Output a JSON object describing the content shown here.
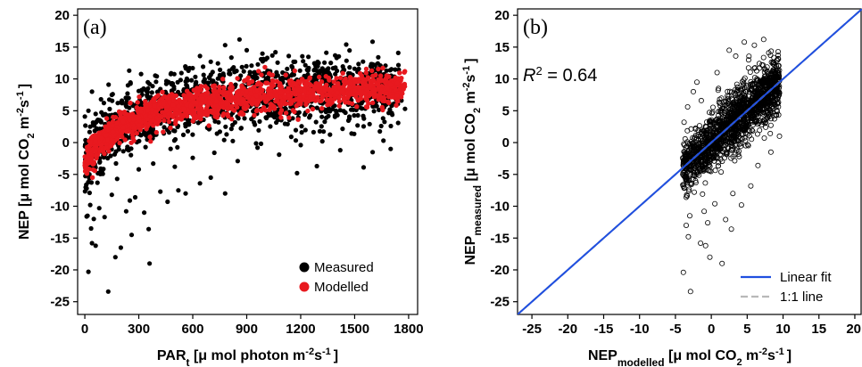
{
  "chart_data": [
    {
      "type": "scatter",
      "panel_label": "(a)",
      "xlabel": {
        "main": "PAR",
        "sub": "t",
        "rest": " [μ mol photon m",
        "sup1": "-2",
        "mid": "s",
        "sup2": "-1",
        "end": "]"
      },
      "ylabel": {
        "main": "NEP [μ mol CO",
        "sub": "2",
        "rest": " m",
        "sup1": "-2",
        "mid": "s",
        "sup2": "-1",
        "end": "]"
      },
      "xlim": [
        -40,
        1850
      ],
      "ylim": [
        -27,
        21
      ],
      "xticks": [
        0,
        300,
        600,
        900,
        1200,
        1500,
        1800
      ],
      "yticks": [
        -25,
        -20,
        -15,
        -10,
        -5,
        0,
        5,
        10,
        15,
        20
      ],
      "legend": {
        "position": "bottom-right",
        "entries": [
          {
            "label": "Measured",
            "color": "#000000"
          },
          {
            "label": "Modelled",
            "color": "#e8191f"
          }
        ]
      },
      "model": {
        "Pmax": 13.5,
        "alpha": 0.045,
        "Rd": 3.0
      },
      "series": [
        {
          "name": "Measured",
          "color": "#000000",
          "points": [
            [
              20,
              -20.3
            ],
            [
              40,
              -15.8
            ],
            [
              60,
              -16.2
            ],
            [
              130,
              -23.4
            ],
            [
              170,
              -18.0
            ],
            [
              260,
              -14.5
            ],
            [
              360,
              -19.0
            ],
            [
              355,
              -13.6
            ],
            [
              230,
              -10.8
            ],
            [
              200,
              -16.5
            ],
            [
              50,
              -12.0
            ],
            [
              80,
              -10.3
            ],
            [
              30,
              -9.8
            ],
            [
              110,
              -11.7
            ],
            [
              330,
              -11.0
            ],
            [
              150,
              -8.2
            ],
            [
              250,
              -9.1
            ],
            [
              280,
              -8.6
            ],
            [
              420,
              -7.7
            ],
            [
              460,
              -9.3
            ],
            [
              520,
              -7.5
            ],
            [
              560,
              -8.0
            ],
            [
              640,
              -6.4
            ],
            [
              700,
              -5.5
            ],
            [
              780,
              -8.0
            ],
            [
              1180,
              -4.8
            ],
            [
              1290,
              -3.7
            ],
            [
              1550,
              -3.9
            ],
            [
              1600,
              -1.5
            ],
            [
              1700,
              -1.0
            ],
            [
              860,
              16.2
            ],
            [
              900,
              14.5
            ],
            [
              780,
              15.3
            ],
            [
              1060,
              14.2
            ],
            [
              1400,
              13.3
            ],
            [
              1300,
              12.5
            ],
            [
              1600,
              12.3
            ],
            [
              640,
              13.6
            ],
            [
              700,
              12.7
            ],
            [
              560,
              11.9
            ],
            [
              480,
              10.9
            ],
            [
              400,
              10.4
            ],
            [
              980,
              13.1
            ],
            [
              1150,
              12.0
            ],
            [
              1500,
              11.6
            ],
            [
              1650,
              10.3
            ],
            [
              1700,
              8.9
            ],
            [
              1760,
              6.6
            ],
            [
              1780,
              5.3
            ],
            [
              40,
              8.0
            ],
            [
              20,
              5.0
            ],
            [
              60,
              4.5
            ],
            [
              30,
              2.5
            ],
            [
              90,
              6.8
            ],
            [
              150,
              7.5
            ],
            [
              200,
              6.3
            ],
            [
              240,
              9.0
            ],
            [
              300,
              8.1
            ],
            [
              360,
              9.2
            ],
            [
              420,
              8.4
            ],
            [
              820,
              11.6
            ],
            [
              940,
              11.0
            ],
            [
              1020,
              10.3
            ],
            [
              1100,
              9.9
            ],
            [
              1240,
              10.7
            ],
            [
              1340,
              9.4
            ],
            [
              1450,
              10.1
            ],
            [
              1560,
              8.8
            ],
            [
              750,
              10.2
            ],
            [
              660,
              9.6
            ],
            [
              10,
              -7.2
            ],
            [
              25,
              -5.6
            ],
            [
              45,
              -3.1
            ],
            [
              70,
              -6.3
            ],
            [
              15,
              -11.5
            ],
            [
              35,
              -13.5
            ],
            [
              100,
              -4.9
            ],
            [
              180,
              -5.7
            ],
            [
              300,
              -4.2
            ],
            [
              380,
              -3.3
            ],
            [
              500,
              -3.8
            ],
            [
              600,
              -2.4
            ],
            [
              720,
              -1.6
            ],
            [
              850,
              -2.9
            ],
            [
              960,
              -0.8
            ],
            [
              1080,
              -1.9
            ],
            [
              1200,
              -0.4
            ],
            [
              1320,
              0.2
            ],
            [
              1420,
              -1.2
            ],
            [
              1660,
              0.3
            ]
          ]
        }
      ]
    },
    {
      "type": "scatter",
      "panel_label": "(b)",
      "annotation": {
        "text_r": "R",
        "text_sup": "2",
        "text_val": " = 0.64"
      },
      "xlabel": {
        "main": "NEP",
        "sub": "modelled",
        "rest": " [μ mol CO",
        "sub2": "2",
        "rest2": " m",
        "sup1": "-2",
        "mid": "s",
        "sup2": "-1",
        "end": "]"
      },
      "ylabel": {
        "main": "NEP",
        "sub": "measured",
        "rest": " [μ mol CO",
        "sub2": "2",
        "rest2": " m",
        "sup1": "-2",
        "mid": "s",
        "sup2": "-1",
        "end": "]"
      },
      "xlim": [
        -27,
        21
      ],
      "ylim": [
        -27,
        21
      ],
      "xticks": [
        -25,
        -20,
        -15,
        -10,
        -5,
        0,
        5,
        10,
        15,
        20
      ],
      "yticks": [
        -25,
        -20,
        -15,
        -10,
        -5,
        0,
        5,
        10,
        15,
        20
      ],
      "legend": {
        "position": "bottom-right",
        "entries": [
          {
            "label": "Linear fit",
            "color": "#1f4fe0",
            "style": "solid"
          },
          {
            "label": "1:1 line",
            "color": "#b8b8b8",
            "style": "dashed"
          }
        ]
      },
      "fit_line": {
        "slope": 1.0,
        "intercept": 0.0
      },
      "outliers": [
        [
          -3.9,
          -20.4
        ],
        [
          -2.9,
          -23.4
        ],
        [
          -1.5,
          -15.8
        ],
        [
          -0.2,
          -18.0
        ],
        [
          -0.8,
          -16.2
        ],
        [
          1.5,
          -19.0
        ],
        [
          2.8,
          -13.6
        ],
        [
          -3.0,
          -11.5
        ],
        [
          -3.5,
          -13.0
        ],
        [
          -1.0,
          -10.8
        ],
        [
          0.5,
          -9.6
        ],
        [
          -3.2,
          -14.8
        ],
        [
          4.2,
          -9.8
        ],
        [
          5.5,
          -6.8
        ],
        [
          -2.5,
          8.0
        ],
        [
          -3.3,
          5.6
        ],
        [
          -3.8,
          3.2
        ],
        [
          -2.0,
          9.5
        ],
        [
          6.0,
          15.3
        ],
        [
          7.3,
          16.2
        ],
        [
          8.0,
          14.1
        ],
        [
          5.2,
          13.0
        ],
        [
          3.4,
          13.6
        ],
        [
          -1.4,
          6.6
        ],
        [
          7.8,
          11.2
        ],
        [
          8.6,
          9.7
        ],
        [
          9.2,
          7.8
        ],
        [
          9.0,
          4.3
        ],
        [
          9.5,
          1.0
        ],
        [
          8.3,
          -1.5
        ],
        [
          6.5,
          -3.6
        ],
        [
          -3.5,
          -8.6
        ],
        [
          -2.2,
          -6.0
        ],
        [
          -0.5,
          -12.6
        ],
        [
          2.0,
          -12.1
        ],
        [
          3.0,
          -8.0
        ],
        [
          0.8,
          11.0
        ],
        [
          2.5,
          14.5
        ],
        [
          4.6,
          15.8
        ],
        [
          1.0,
          8.5
        ]
      ]
    }
  ]
}
